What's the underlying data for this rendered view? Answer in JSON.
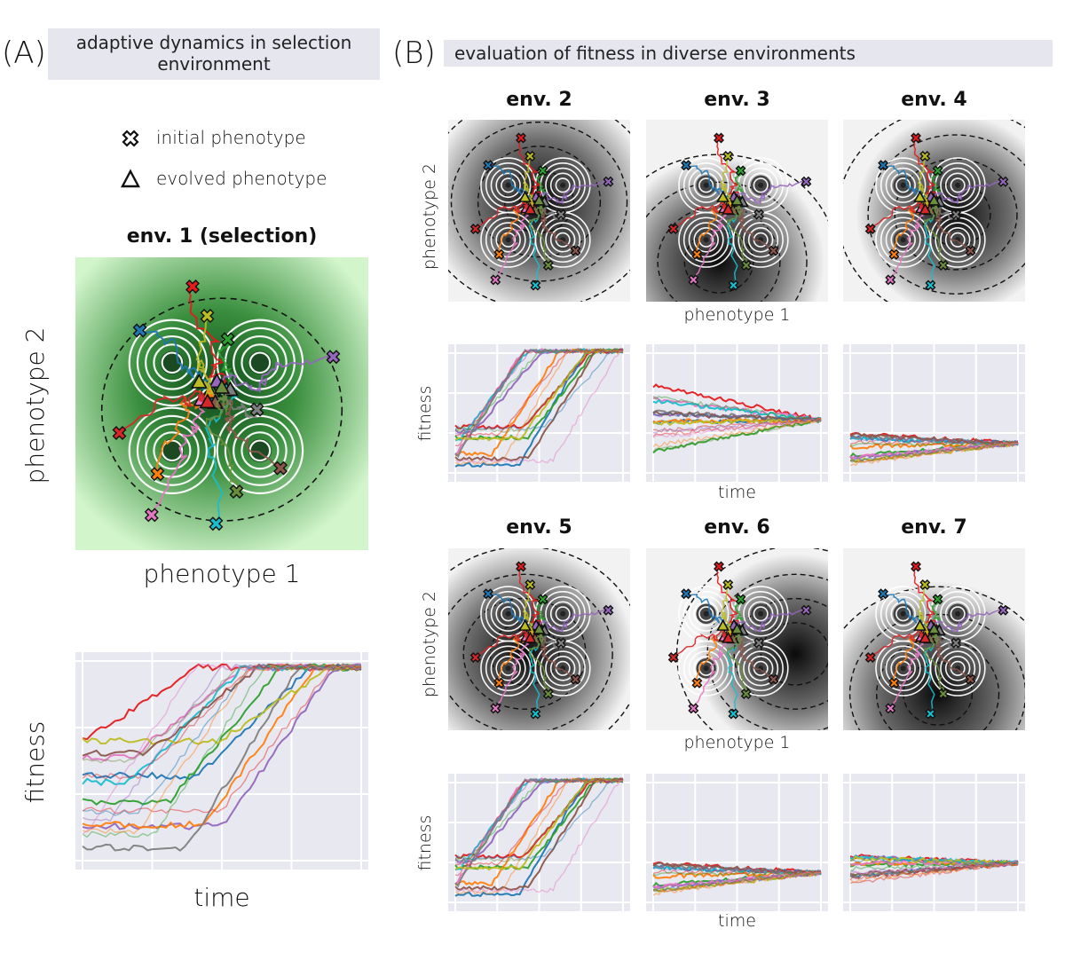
{
  "panelA": {
    "letter": "(A)",
    "header": "adaptive dynamics in selection environment",
    "legend": {
      "initial": "initial phenotype",
      "evolved": "evolved phenotype"
    },
    "env_title": "env. 1 (selection)",
    "xlabel": "phenotype 1",
    "ylabel": "phenotype 2",
    "fit_xlabel": "time",
    "fit_ylabel": "fitness"
  },
  "panelB": {
    "letter": "(B)",
    "header": "evaluation of fitness in diverse environments",
    "envs": [
      "env. 2",
      "env. 3",
      "env. 4",
      "env. 5",
      "env. 6",
      "env. 7"
    ],
    "xlabel": "phenotype 1",
    "ylabel": "phenotype 2",
    "fit_xlabel": "time",
    "fit_ylabel": "fitness"
  },
  "colors": {
    "header_bg": "#e6e6ef",
    "selection_bg": "#cdf1c6",
    "selection_core": "#1e6b2a",
    "series": [
      "#e41a1c",
      "#1f77b4",
      "#2ca02c",
      "#9467bd",
      "#ff7f0e",
      "#e377c2",
      "#17becf",
      "#7f7f7f",
      "#bcbd22",
      "#8c564b",
      "#d62728",
      "#6a8e3c"
    ]
  }
}
